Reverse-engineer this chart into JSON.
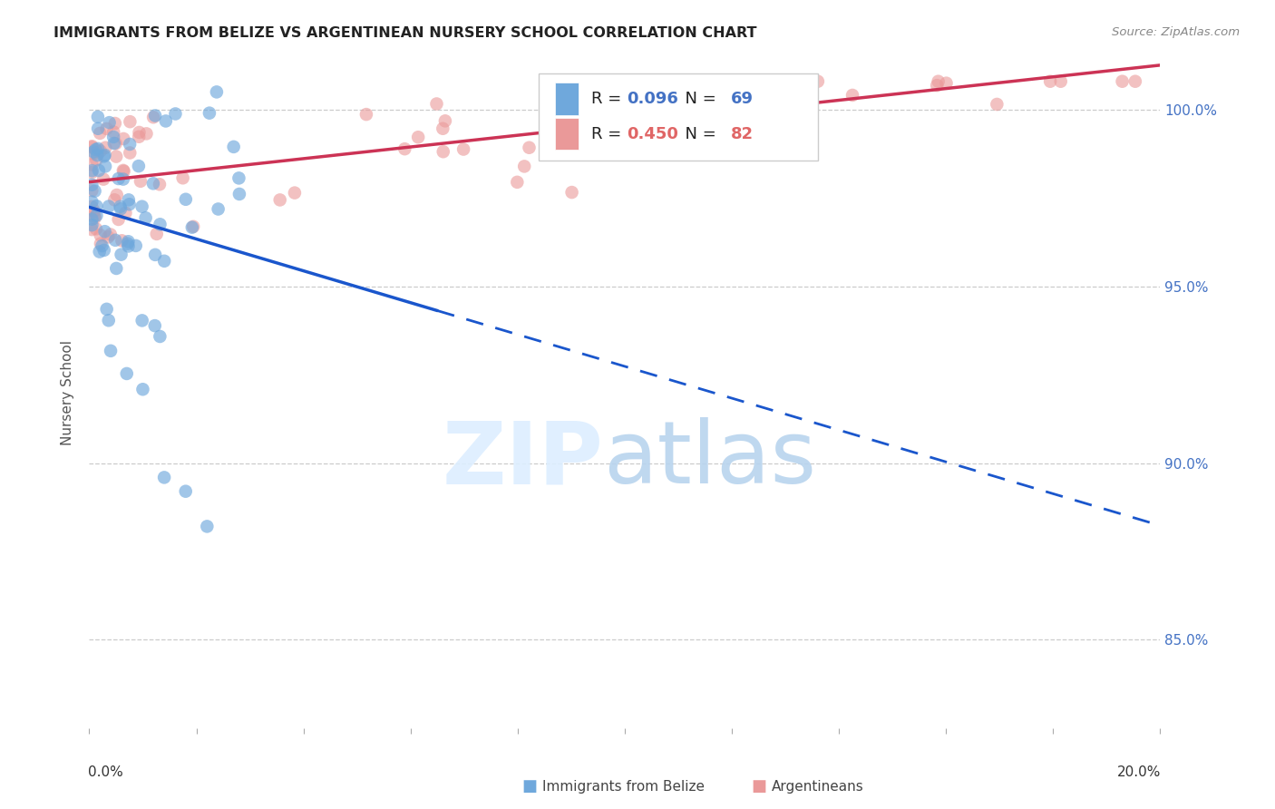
{
  "title": "IMMIGRANTS FROM BELIZE VS ARGENTINEAN NURSERY SCHOOL CORRELATION CHART",
  "source": "Source: ZipAtlas.com",
  "ylabel": "Nursery School",
  "y_ticks": [
    0.85,
    0.9,
    0.95,
    1.0
  ],
  "y_tick_labels": [
    "85.0%",
    "90.0%",
    "95.0%",
    "100.0%"
  ],
  "x_range": [
    0.0,
    0.2
  ],
  "y_range": [
    0.825,
    1.015
  ],
  "blue_R": 0.096,
  "blue_N": 69,
  "pink_R": 0.45,
  "pink_N": 82,
  "blue_color": "#6fa8dc",
  "pink_color": "#ea9999",
  "blue_line_color": "#1a56cc",
  "pink_line_color": "#cc3355",
  "legend_label_blue": "Immigrants from Belize",
  "legend_label_pink": "Argentineans"
}
